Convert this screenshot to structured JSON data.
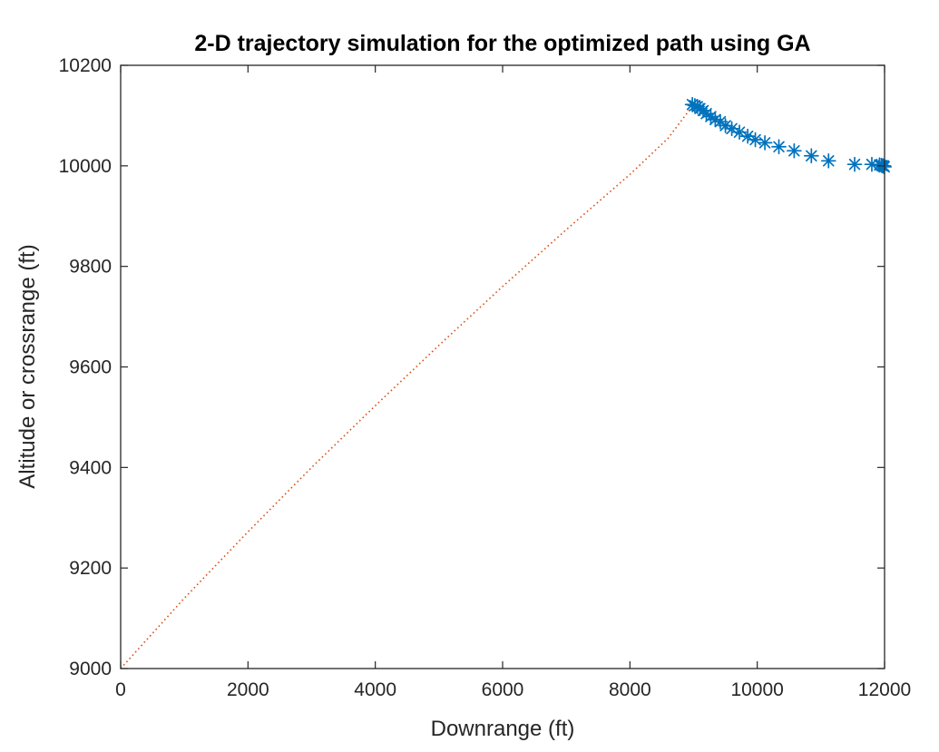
{
  "chart_data": {
    "type": "scatter",
    "title": "2-D trajectory simulation for the optimized path using GA",
    "xlabel": "Downrange (ft)",
    "ylabel": "Altitude or crossrange (ft)",
    "xlim": [
      0,
      12000
    ],
    "ylim": [
      9000,
      10200
    ],
    "xticks": [
      "0",
      "2000",
      "4000",
      "6000",
      "8000",
      "10000",
      "12000"
    ],
    "yticks": [
      "9000",
      "9200",
      "9400",
      "9600",
      "9800",
      "10000",
      "10200"
    ],
    "grid": false,
    "legend": "none",
    "series": [
      {
        "style": "dotted-line",
        "color": "#D95319",
        "x": [
          0,
          1000,
          2000,
          3000,
          4000,
          5000,
          6000,
          7000,
          8000,
          8600,
          9000
        ],
        "y": [
          9000,
          9140,
          9272,
          9400,
          9523,
          9643,
          9760,
          9873,
          9983,
          10055,
          10122
        ]
      },
      {
        "style": "asterisk-markers",
        "color": "#0072BD",
        "x": [
          8980,
          9020,
          9060,
          9100,
          9150,
          9200,
          9270,
          9340,
          9420,
          9500,
          9600,
          9720,
          9850,
          9970,
          10120,
          10340,
          10580,
          10850,
          11120,
          11530,
          11800,
          11920,
          11950,
          11970,
          11985,
          11990,
          11995
        ],
        "y": [
          10122,
          10120,
          10118,
          10114,
          10110,
          10104,
          10098,
          10092,
          10088,
          10080,
          10074,
          10067,
          10059,
          10052,
          10046,
          10038,
          10030,
          10020,
          10010,
          10003,
          10003,
          10002,
          10001,
          10000,
          10000,
          9999,
          9998
        ]
      }
    ]
  }
}
